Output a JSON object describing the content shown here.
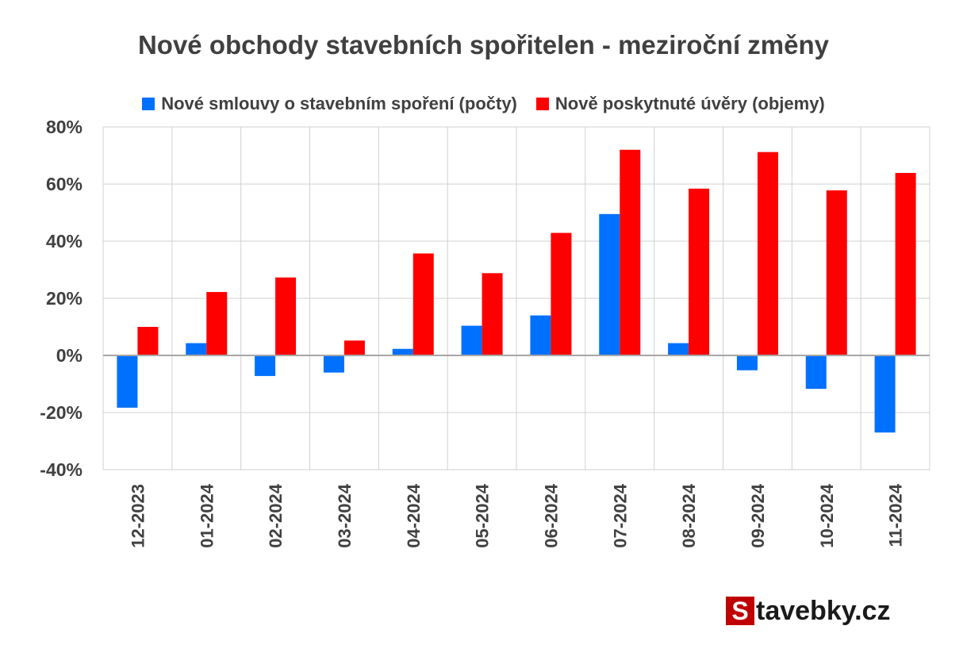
{
  "chart_data": {
    "type": "bar",
    "title": "Nové obchody stavebních spořitelen - meziroční změny",
    "categories": [
      "12-2023",
      "01-2024",
      "02-2024",
      "03-2024",
      "04-2024",
      "05-2024",
      "06-2024",
      "07-2024",
      "08-2024",
      "09-2024",
      "10-2024",
      "11-2024"
    ],
    "series": [
      {
        "name": "Nové smlouvy o stavebním spoření (počty)",
        "color": "#0070ff",
        "values": [
          -18.3,
          4.3,
          -7.2,
          -6.0,
          2.3,
          10.4,
          14.0,
          49.5,
          4.3,
          -5.2,
          -11.7,
          -27.0
        ]
      },
      {
        "name": "Nově poskytnuté úvěry (objemy)",
        "color": "#ff0000",
        "values": [
          10.0,
          22.2,
          27.3,
          5.2,
          35.7,
          28.8,
          42.9,
          72.0,
          58.4,
          71.2,
          57.8,
          63.9
        ]
      }
    ],
    "yticks": [
      "80%",
      "60%",
      "40%",
      "20%",
      "0%",
      "-20%",
      "-40%"
    ],
    "ylim": [
      -40,
      80
    ],
    "grid": true,
    "legend_position": "top"
  },
  "watermark": {
    "s": "S",
    "rest": "tavebky.cz"
  }
}
